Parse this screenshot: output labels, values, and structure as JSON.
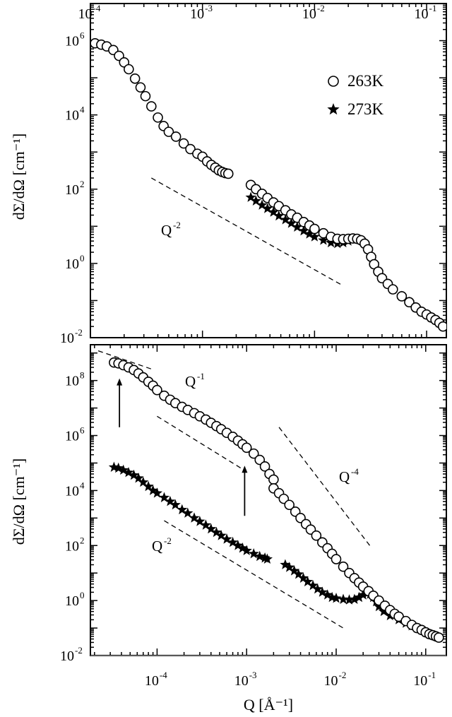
{
  "chart_data": [
    {
      "type": "scatter",
      "panel": "top",
      "ylabel": "dΣ/dΩ [cm⁻¹]",
      "x_scale": "log",
      "y_scale": "log",
      "xlim": [
        0.0001,
        0.15
      ],
      "ylim": [
        0.01,
        10000000
      ],
      "x_ticks": [
        {
          "base": "10",
          "exp": "-4",
          "value": 0.0001
        },
        {
          "base": "10",
          "exp": "-3",
          "value": 0.001
        },
        {
          "base": "10",
          "exp": "-2",
          "value": 0.01
        },
        {
          "base": "10",
          "exp": "-1",
          "value": 0.1
        }
      ],
      "y_ticks": [
        {
          "base": "10",
          "exp": "6",
          "value": 1000000
        },
        {
          "base": "10",
          "exp": "4",
          "value": 10000
        },
        {
          "base": "10",
          "exp": "2",
          "value": 100
        },
        {
          "base": "10",
          "exp": "0",
          "value": 1
        },
        {
          "base": "10",
          "exp": "-2",
          "value": 0.01
        }
      ],
      "legend_position": "top-right",
      "series": [
        {
          "name": "263K",
          "marker": "circle",
          "points": [
            [
              0.00011,
              850000
            ],
            [
              0.000125,
              780000
            ],
            [
              0.00014,
              700000
            ],
            [
              0.00016,
              560000
            ],
            [
              0.00018,
              390000
            ],
            [
              0.0002,
              260000
            ],
            [
              0.00022,
              170000
            ],
            [
              0.00025,
              95000
            ],
            [
              0.00028,
              55000
            ],
            [
              0.00031,
              32000
            ],
            [
              0.00035,
              17000
            ],
            [
              0.0004,
              8500
            ],
            [
              0.00045,
              5000
            ],
            [
              0.0005,
              3500
            ],
            [
              0.00058,
              2600
            ],
            [
              0.00068,
              1700
            ],
            [
              0.00078,
              1200
            ],
            [
              0.0009,
              900
            ],
            [
              0.001,
              750
            ],
            [
              0.0011,
              560
            ],
            [
              0.0012,
              450
            ],
            [
              0.0013,
              380
            ],
            [
              0.0014,
              320
            ],
            [
              0.0015,
              290
            ],
            [
              0.0016,
              270
            ],
            [
              0.0017,
              260
            ],
            [
              0.0027,
              130
            ],
            [
              0.003,
              100
            ],
            [
              0.0034,
              75
            ],
            [
              0.0038,
              58
            ],
            [
              0.0043,
              44
            ],
            [
              0.0048,
              35
            ],
            [
              0.0055,
              27
            ],
            [
              0.0062,
              21
            ],
            [
              0.007,
              17
            ],
            [
              0.008,
              13
            ],
            [
              0.009,
              10.5
            ],
            [
              0.01,
              8.5
            ],
            [
              0.012,
              6.5
            ],
            [
              0.014,
              5.2
            ],
            [
              0.016,
              4.6
            ],
            [
              0.018,
              4.5
            ],
            [
              0.02,
              4.6
            ],
            [
              0.022,
              4.7
            ],
            [
              0.024,
              4.6
            ],
            [
              0.026,
              4.2
            ],
            [
              0.028,
              3.4
            ],
            [
              0.03,
              2.4
            ],
            [
              0.032,
              1.5
            ],
            [
              0.034,
              0.95
            ],
            [
              0.037,
              0.6
            ],
            [
              0.04,
              0.4
            ],
            [
              0.045,
              0.28
            ],
            [
              0.05,
              0.2
            ],
            [
              0.06,
              0.13
            ],
            [
              0.07,
              0.09
            ],
            [
              0.08,
              0.065
            ],
            [
              0.09,
              0.05
            ],
            [
              0.1,
              0.042
            ],
            [
              0.11,
              0.035
            ],
            [
              0.12,
              0.03
            ],
            [
              0.13,
              0.025
            ],
            [
              0.14,
              0.02
            ]
          ]
        },
        {
          "name": "273K",
          "marker": "star",
          "points": [
            [
              0.0027,
              60
            ],
            [
              0.003,
              48
            ],
            [
              0.0034,
              37
            ],
            [
              0.0038,
              30
            ],
            [
              0.0043,
              24
            ],
            [
              0.0048,
              19
            ],
            [
              0.0055,
              15
            ],
            [
              0.0062,
              12
            ],
            [
              0.007,
              9.5
            ],
            [
              0.008,
              7.5
            ],
            [
              0.009,
              6.2
            ],
            [
              0.01,
              5.2
            ],
            [
              0.012,
              4.2
            ],
            [
              0.014,
              3.6
            ],
            [
              0.016,
              3.4
            ],
            [
              0.018,
              3.6
            ],
            [
              0.02,
              4.0
            ],
            [
              0.022,
              4.4
            ],
            [
              0.024,
              4.5
            ],
            [
              0.026,
              4.2
            ],
            [
              0.028,
              3.4
            ],
            [
              0.03,
              2.4
            ],
            [
              0.032,
              1.5
            ],
            [
              0.034,
              0.95
            ],
            [
              0.037,
              0.6
            ],
            [
              0.04,
              0.4
            ],
            [
              0.045,
              0.28
            ],
            [
              0.05,
              0.2
            ],
            [
              0.06,
              0.13
            ],
            [
              0.07,
              0.09
            ],
            [
              0.08,
              0.065
            ],
            [
              0.09,
              0.05
            ],
            [
              0.1,
              0.042
            ],
            [
              0.11,
              0.035
            ],
            [
              0.12,
              0.03
            ],
            [
              0.13,
              0.025
            ]
          ]
        }
      ],
      "guide_lines": [
        {
          "label_base": "Q",
          "label_exp": "-2",
          "x0": 0.00035,
          "y0": 200,
          "x1": 0.018,
          "y1": 0.25
        }
      ]
    },
    {
      "type": "scatter",
      "panel": "bottom",
      "ylabel": "dΣ/dΩ [cm⁻¹]",
      "xlabel": "Q   [Å⁻¹]",
      "x_scale": "log",
      "y_scale": "log",
      "xlim": [
        1.8e-05,
        0.17
      ],
      "ylim": [
        0.01,
        2000000000
      ],
      "x_ticks": [
        {
          "base": "10",
          "exp": "-4",
          "value": 0.0001
        },
        {
          "base": "10",
          "exp": "-3",
          "value": 0.001
        },
        {
          "base": "10",
          "exp": "-2",
          "value": 0.01
        },
        {
          "base": "10",
          "exp": "-1",
          "value": 0.1
        }
      ],
      "y_ticks": [
        {
          "base": "10",
          "exp": "8",
          "value": 100000000
        },
        {
          "base": "10",
          "exp": "6",
          "value": 1000000
        },
        {
          "base": "10",
          "exp": "4",
          "value": 10000
        },
        {
          "base": "10",
          "exp": "2",
          "value": 100
        },
        {
          "base": "10",
          "exp": "0",
          "value": 1
        },
        {
          "base": "10",
          "exp": "-2",
          "value": 0.01
        }
      ],
      "series": [
        {
          "name": "263K",
          "marker": "circle",
          "points": [
            [
              3.3e-05,
              450000000
            ],
            [
              3.7e-05,
              420000000
            ],
            [
              4.2e-05,
              360000000
            ],
            [
              4.8e-05,
              300000000
            ],
            [
              5.5e-05,
              240000000
            ],
            [
              6.2e-05,
              180000000
            ],
            [
              7e-05,
              130000000
            ],
            [
              8e-05,
              90000000
            ],
            [
              9e-05,
              65000000
            ],
            [
              0.0001,
              45000000
            ],
            [
              0.00012,
              28000000
            ],
            [
              0.00014,
              20000000
            ],
            [
              0.00016,
              15000000
            ],
            [
              0.00019,
              11000000
            ],
            [
              0.00022,
              8500000
            ],
            [
              0.00026,
              6500000
            ],
            [
              0.0003,
              5000000
            ],
            [
              0.00035,
              3800000
            ],
            [
              0.0004,
              2900000
            ],
            [
              0.00046,
              2200000
            ],
            [
              0.00052,
              1700000
            ],
            [
              0.0006,
              1250000
            ],
            [
              0.0007,
              900000
            ],
            [
              0.0008,
              650000
            ],
            [
              0.0009,
              480000
            ],
            [
              0.001,
              360000
            ],
            [
              0.0012,
              220000
            ],
            [
              0.0014,
              130000
            ],
            [
              0.0016,
              75000
            ],
            [
              0.0018,
              40000
            ],
            [
              0.002,
              25000
            ],
            [
              0.002,
              12000
            ],
            [
              0.0023,
              8000
            ],
            [
              0.0026,
              5000
            ],
            [
              0.003,
              3000
            ],
            [
              0.0035,
              1700
            ],
            [
              0.004,
              1000
            ],
            [
              0.0046,
              600
            ],
            [
              0.0052,
              380
            ],
            [
              0.006,
              230
            ],
            [
              0.007,
              130
            ],
            [
              0.008,
              80
            ],
            [
              0.009,
              50
            ],
            [
              0.01,
              32
            ],
            [
              0.012,
              17
            ],
            [
              0.014,
              10
            ],
            [
              0.016,
              6.5
            ],
            [
              0.018,
              4.5
            ],
            [
              0.02,
              3.2
            ],
            [
              0.023,
              2.2
            ],
            [
              0.026,
              1.5
            ],
            [
              0.03,
              1.0
            ],
            [
              0.035,
              0.65
            ],
            [
              0.04,
              0.45
            ],
            [
              0.045,
              0.33
            ],
            [
              0.05,
              0.26
            ],
            [
              0.06,
              0.18
            ],
            [
              0.07,
              0.13
            ],
            [
              0.08,
              0.1
            ],
            [
              0.09,
              0.085
            ],
            [
              0.1,
              0.07
            ],
            [
              0.11,
              0.06
            ],
            [
              0.12,
              0.055
            ],
            [
              0.13,
              0.05
            ],
            [
              0.14,
              0.045
            ]
          ]
        },
        {
          "name": "273K",
          "marker": "star",
          "points": [
            [
              3.3e-05,
              70000
            ],
            [
              3.7e-05,
              65000
            ],
            [
              4.2e-05,
              55000
            ],
            [
              4.8e-05,
              45000
            ],
            [
              5.5e-05,
              36000
            ],
            [
              6.2e-05,
              28000
            ],
            [
              7e-05,
              20000
            ],
            [
              8e-05,
              14000
            ],
            [
              9e-05,
              10000
            ],
            [
              0.0001,
              8000
            ],
            [
              0.00012,
              5500
            ],
            [
              0.00014,
              4000
            ],
            [
              0.00016,
              3000
            ],
            [
              0.00019,
              2000
            ],
            [
              0.00022,
              1500
            ],
            [
              0.00026,
              1000
            ],
            [
              0.0003,
              750
            ],
            [
              0.00035,
              550
            ],
            [
              0.0004,
              400
            ],
            [
              0.00046,
              300
            ],
            [
              0.00052,
              230
            ],
            [
              0.0006,
              170
            ],
            [
              0.0007,
              130
            ],
            [
              0.0008,
              100
            ],
            [
              0.0009,
              80
            ],
            [
              0.001,
              65
            ],
            [
              0.0012,
              50
            ],
            [
              0.0014,
              40
            ],
            [
              0.0016,
              35
            ],
            [
              0.0017,
              32
            ],
            [
              0.0027,
              20
            ],
            [
              0.003,
              16
            ],
            [
              0.0034,
              12
            ],
            [
              0.0038,
              9
            ],
            [
              0.0043,
              6.5
            ],
            [
              0.0048,
              4.8
            ],
            [
              0.0055,
              3.5
            ],
            [
              0.0062,
              2.6
            ],
            [
              0.007,
              2.0
            ],
            [
              0.008,
              1.6
            ],
            [
              0.009,
              1.3
            ],
            [
              0.01,
              1.2
            ],
            [
              0.012,
              1.1
            ],
            [
              0.014,
              1.05
            ],
            [
              0.016,
              1.1
            ],
            [
              0.018,
              1.3
            ],
            [
              0.02,
              1.6
            ],
            [
              0.022,
              1.8
            ],
            [
              0.024,
              1.7
            ],
            [
              0.026,
              1.3
            ],
            [
              0.028,
              0.9
            ],
            [
              0.03,
              0.6
            ],
            [
              0.034,
              0.4
            ],
            [
              0.04,
              0.28
            ],
            [
              0.05,
              0.2
            ],
            [
              0.06,
              0.15
            ],
            [
              0.07,
              0.12
            ],
            [
              0.08,
              0.1
            ],
            [
              0.09,
              0.085
            ],
            [
              0.1,
              0.07
            ],
            [
              0.11,
              0.06
            ],
            [
              0.12,
              0.055
            ],
            [
              0.13,
              0.05
            ],
            [
              0.14,
              0.045
            ]
          ]
        }
      ],
      "guide_lines": [
        {
          "label_base": "Q",
          "label_exp": "-1",
          "x0": 2.2e-05,
          "y0": 1200000000,
          "x1": 9e-05,
          "y1": 250000000
        },
        {
          "label_base": "Q",
          "label_exp": "-2",
          "x0": 0.0001,
          "y0": 5000000,
          "x1": 0.0009,
          "y1": 60000
        },
        {
          "label_base": "Q",
          "label_exp": "-2",
          "x0": 0.00012,
          "y0": 800,
          "x1": 0.012,
          "y1": 0.1
        },
        {
          "label_base": "Q",
          "label_exp": "-4",
          "x0": 0.0023,
          "y0": 2000000,
          "x1": 0.025,
          "y1": 80
        }
      ],
      "arrows": [
        {
          "x": 3.8e-05,
          "y_from": 2000000,
          "y_to": 120000000
        },
        {
          "x": 0.00095,
          "y_from": 1200,
          "y_to": 80000
        }
      ]
    }
  ]
}
